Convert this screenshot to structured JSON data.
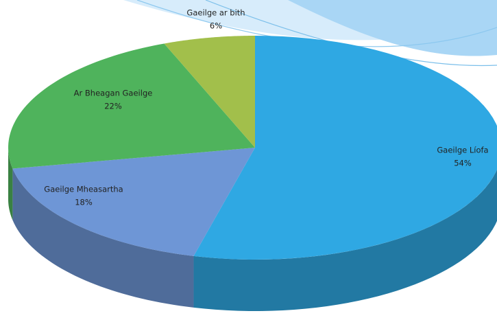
{
  "chart_data": {
    "type": "pie",
    "categories": [
      "Gaeilge Líofa",
      "Gaeilge Mheasartha",
      "Ar Bheagan Gaeilge",
      "Gaeilge ar bith"
    ],
    "values": [
      54,
      18,
      22,
      6
    ],
    "value_labels": [
      "54%",
      "18%",
      "22%",
      "6%"
    ],
    "colors": [
      "#2fa8e3",
      "#6e96d6",
      "#4fb35c",
      "#a2bf4b"
    ]
  }
}
